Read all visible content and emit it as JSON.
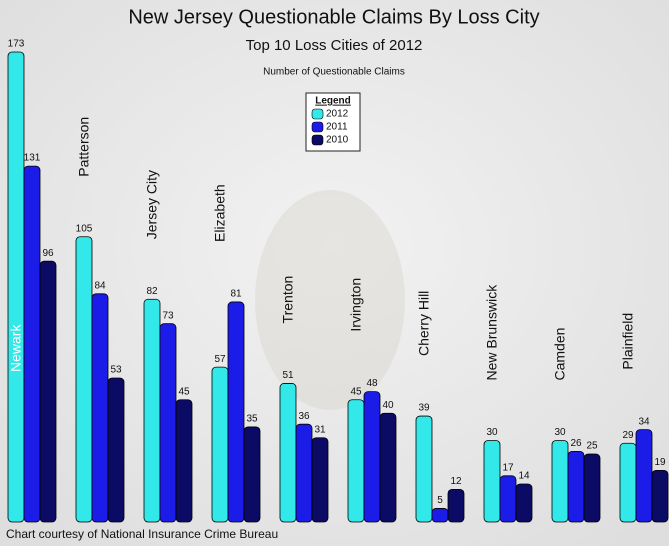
{
  "chart_data": {
    "type": "bar",
    "title": "New Jersey Questionable Claims By Loss City",
    "subtitle": "Top 10 Loss Cities of 2012",
    "y_label": "Number of Questionable Claims",
    "legend_title": "Legend",
    "footer": "Chart courtesy of National Insurance Crime Bureau",
    "categories": [
      "Newark",
      "Patterson",
      "Jersey City",
      "Elizabeth",
      "Trenton",
      "Irvington",
      "Cherry Hill",
      "New Brunswick",
      "Camden",
      "Plainfield"
    ],
    "series": [
      {
        "name": "2012",
        "color": "#33e8e8",
        "values": [
          173,
          105,
          82,
          57,
          51,
          45,
          39,
          30,
          30,
          29
        ]
      },
      {
        "name": "2011",
        "color": "#1c1ce8",
        "values": [
          131,
          84,
          73,
          81,
          36,
          48,
          5,
          17,
          26,
          34
        ]
      },
      {
        "name": "2010",
        "color": "#0b0b66",
        "values": [
          96,
          53,
          45,
          35,
          31,
          40,
          12,
          14,
          25,
          19
        ]
      }
    ]
  }
}
